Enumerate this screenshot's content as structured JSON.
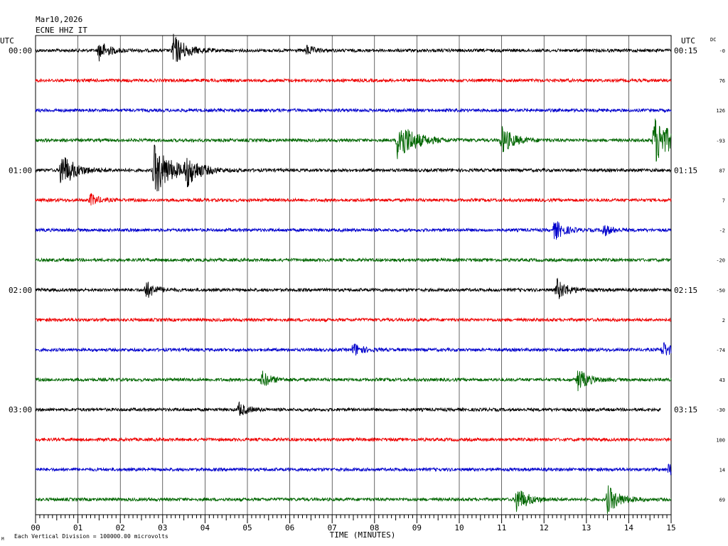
{
  "header": {
    "date": "Mar10,2026",
    "station": "ECNE HHZ IT"
  },
  "labels": {
    "utc_left": "UTC",
    "utc_right": "UTC",
    "dc": "DC",
    "xaxis_title": "TIME (MINUTES)",
    "footer": "Each Vertical Division = 100000.00 microvolts",
    "footer_mark": "M"
  },
  "chart_data": {
    "type": "line",
    "title": "Mar10,2026 ECNE HHZ IT",
    "xlabel": "TIME (MINUTES)",
    "ylabel": "",
    "xlim": [
      0,
      15
    ],
    "grid": true,
    "x_ticks": [
      "00",
      "01",
      "02",
      "03",
      "04",
      "05",
      "06",
      "07",
      "08",
      "09",
      "10",
      "11",
      "12",
      "13",
      "14",
      "15"
    ],
    "trace_colors": [
      "#000000",
      "#ee0000",
      "#0000cc",
      "#006600"
    ],
    "hour_labels": [
      {
        "row": 0,
        "left": "00:00",
        "right": "00:15"
      },
      {
        "row": 4,
        "left": "01:00",
        "right": "01:15"
      },
      {
        "row": 8,
        "left": "02:00",
        "right": "02:15"
      },
      {
        "row": 12,
        "left": "03:00",
        "right": "03:15"
      }
    ],
    "dc_offsets": [
      "-0",
      "76",
      "126",
      "-93",
      "87",
      "7",
      "-2",
      "-20",
      "-50",
      "2",
      "-74",
      "43",
      "-30",
      "100",
      "14",
      "69"
    ],
    "events": [
      {
        "row": 0,
        "minute": 1.5,
        "amp": 1.0
      },
      {
        "row": 0,
        "minute": 3.25,
        "amp": 1.6
      },
      {
        "row": 0,
        "minute": 6.4,
        "amp": 0.5
      },
      {
        "row": 3,
        "minute": 8.55,
        "amp": 2.3
      },
      {
        "row": 3,
        "minute": 11.0,
        "amp": 1.4
      },
      {
        "row": 3,
        "minute": 14.6,
        "amp": 2.5
      },
      {
        "row": 4,
        "minute": 0.6,
        "amp": 1.8
      },
      {
        "row": 4,
        "minute": 2.8,
        "amp": 2.6
      },
      {
        "row": 4,
        "minute": 3.55,
        "amp": 1.5
      },
      {
        "row": 5,
        "minute": 1.3,
        "amp": 0.6
      },
      {
        "row": 6,
        "minute": 12.25,
        "amp": 1.0
      },
      {
        "row": 6,
        "minute": 13.4,
        "amp": 0.6
      },
      {
        "row": 8,
        "minute": 2.6,
        "amp": 0.9
      },
      {
        "row": 8,
        "minute": 12.3,
        "amp": 1.1
      },
      {
        "row": 10,
        "minute": 7.5,
        "amp": 0.7
      },
      {
        "row": 10,
        "minute": 14.8,
        "amp": 0.8
      },
      {
        "row": 11,
        "minute": 5.35,
        "amp": 0.8
      },
      {
        "row": 11,
        "minute": 12.8,
        "amp": 1.1
      },
      {
        "row": 12,
        "minute": 4.8,
        "amp": 0.7
      },
      {
        "row": 14,
        "minute": 14.95,
        "amp": 0.6
      },
      {
        "row": 15,
        "minute": 11.35,
        "amp": 1.3
      },
      {
        "row": 15,
        "minute": 13.5,
        "amp": 1.4
      }
    ],
    "row_12_end_minute": 14.75
  }
}
